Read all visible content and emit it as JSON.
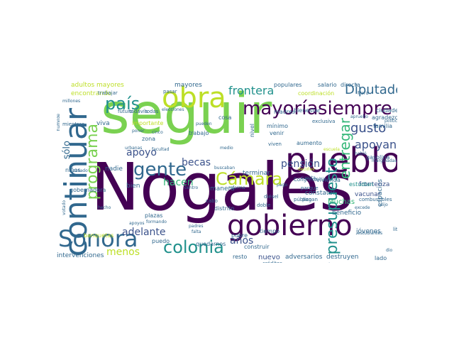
{
  "palette": {
    "dark_purple": "#440154",
    "indigo": "#3b528b",
    "blue": "#31688e",
    "teal": "#21918c",
    "sea_green": "#35b779",
    "green": "#7ad151",
    "yellow_green": "#bddf26",
    "yellow": "#fde725"
  },
  "words": [
    {
      "text": "Nogales",
      "color": "#440154"
    },
    {
      "text": "seguir",
      "color": "#7ad151"
    },
    {
      "text": "pueblo",
      "color": "#440154"
    },
    {
      "text": "continuar",
      "color": "#31688e"
    },
    {
      "text": "obra",
      "color": "#bddf26"
    },
    {
      "text": "mayoría",
      "color": "#440154"
    },
    {
      "text": "siempre",
      "color": "#440154"
    },
    {
      "text": "gobierno",
      "color": "#440154"
    },
    {
      "text": "Sonora",
      "color": "#31688e"
    },
    {
      "text": "colonia",
      "color": "#21918c"
    },
    {
      "text": "gente",
      "color": "#31688e"
    },
    {
      "text": "Cámara",
      "color": "#bddf26"
    },
    {
      "text": "país",
      "color": "#21918c"
    },
    {
      "text": "programa",
      "color": "#7ad151"
    },
    {
      "text": "presupuesto",
      "color": "#21918c"
    },
    {
      "text": "Diputados",
      "color": "#31688e"
    },
    {
      "text": "entregar",
      "color": "#35b779"
    },
    {
      "text": "frontera",
      "color": "#21918c"
    },
    {
      "text": "gusto",
      "color": "#3b528b"
    },
    {
      "text": "apoyando",
      "color": "#3b528b"
    },
    {
      "text": "pensión",
      "color": "#3b528b"
    },
    {
      "text": "apoyo",
      "color": "#3b528b"
    },
    {
      "text": "becas",
      "color": "#3b528b"
    },
    {
      "text": "hacen",
      "color": "#35b779"
    },
    {
      "text": "adelante",
      "color": "#3b528b"
    },
    {
      "text": "años",
      "color": "#3b528b"
    },
    {
      "text": "menos",
      "color": "#bddf26"
    },
    {
      "text": "nuevo",
      "color": "#3b528b"
    },
    {
      "text": "sólo",
      "color": "#31688e"
    },
    {
      "text": "adultos mayores",
      "color": "#bddf26"
    },
    {
      "text": "mayores",
      "color": "#31688e"
    },
    {
      "text": "encontrando",
      "color": "#bddf26"
    },
    {
      "text": "intervenciones",
      "color": "#31688e"
    },
    {
      "text": "Muchas",
      "color": "#35b779"
    },
    {
      "text": "jóvenes",
      "color": "#31688e"
    },
    {
      "text": "destruyen",
      "color": "#31688e"
    },
    {
      "text": "adversarios",
      "color": "#31688e"
    },
    {
      "text": "espacios",
      "color": "#31688e"
    },
    {
      "text": "vacunar",
      "color": "#3b528b"
    },
    {
      "text": "fronteriza",
      "color": "#3b528b"
    },
    {
      "text": "estudian",
      "color": "#21918c"
    },
    {
      "text": "viva",
      "color": "#31688e"
    },
    {
      "text": "bien",
      "color": "#31688e"
    },
    {
      "text": "nadie",
      "color": "#31688e"
    },
    {
      "text": "manera",
      "color": "#31688e"
    },
    {
      "text": "terminar",
      "color": "#31688e"
    },
    {
      "text": "constatar",
      "color": "#31688e"
    },
    {
      "text": "beneficio",
      "color": "#31688e"
    },
    {
      "text": "vivienda",
      "color": "#31688e"
    },
    {
      "text": "tiempo",
      "color": "#31688e"
    },
    {
      "text": "pobre",
      "color": "#31688e"
    },
    {
      "text": "resto",
      "color": "#31688e"
    },
    {
      "text": "lado",
      "color": "#31688e"
    },
    {
      "text": "plazas",
      "color": "#31688e"
    },
    {
      "text": "puedo",
      "color": "#31688e"
    },
    {
      "text": "ciudades",
      "color": "#31688e"
    },
    {
      "text": "agradezco",
      "color": "#31688e"
    },
    {
      "text": "familia",
      "color": "#31688e"
    },
    {
      "text": "gasolina",
      "color": "#31688e"
    },
    {
      "text": "salario",
      "color": "#31688e"
    },
    {
      "text": "directa",
      "color": "#31688e"
    },
    {
      "text": "populares",
      "color": "#31688e"
    },
    {
      "text": "Pura",
      "color": "#31688e"
    },
    {
      "text": "todavía",
      "color": "#31688e"
    },
    {
      "text": "todas",
      "color": "#31688e"
    },
    {
      "text": "futuro",
      "color": "#31688e"
    },
    {
      "text": "trabajo",
      "color": "#31688e"
    },
    {
      "text": "trabajar",
      "color": "#31688e"
    },
    {
      "text": "elecciones",
      "color": "#31688e"
    },
    {
      "text": "madres",
      "color": "#31688e"
    },
    {
      "text": "bienestar",
      "color": "#31688e"
    },
    {
      "text": "mínimo",
      "color": "#31688e"
    },
    {
      "text": "aumento",
      "color": "#31688e"
    },
    {
      "text": "venir",
      "color": "#31688e"
    },
    {
      "text": "viven",
      "color": "#31688e"
    },
    {
      "text": "zona",
      "color": "#31688e"
    },
    {
      "text": "nivel",
      "color": "#31688e"
    },
    {
      "text": "cosa",
      "color": "#31688e"
    },
    {
      "text": "pueden",
      "color": "#31688e"
    },
    {
      "text": "buscaban",
      "color": "#31688e"
    },
    {
      "text": "facultad",
      "color": "#31688e"
    },
    {
      "text": "niños",
      "color": "#31688e"
    },
    {
      "text": "Congreso",
      "color": "#31688e"
    },
    {
      "text": "distrito",
      "color": "#31688e"
    },
    {
      "text": "diésel",
      "color": "#31688e"
    },
    {
      "text": "pagan",
      "color": "#31688e"
    },
    {
      "text": "parque",
      "color": "#31688e"
    },
    {
      "text": "créditos",
      "color": "#31688e"
    },
    {
      "text": "amigos",
      "color": "#31688e"
    },
    {
      "text": "quedarnos",
      "color": "#31688e"
    },
    {
      "text": "banquetas",
      "color": "#bddf26"
    },
    {
      "text": "gobernadora",
      "color": "#31688e"
    },
    {
      "text": "coordinación",
      "color": "#bddf26"
    },
    {
      "text": "construir",
      "color": "#31688e"
    },
    {
      "text": "combustibles",
      "color": "#31688e"
    },
    {
      "text": "exclusiva",
      "color": "#31688e"
    },
    {
      "text": "cuenta",
      "color": "#31688e"
    },
    {
      "text": "falta",
      "color": "#31688e"
    },
    {
      "text": "hecho",
      "color": "#31688e"
    },
    {
      "text": "votado",
      "color": "#31688e"
    },
    {
      "text": "importante",
      "color": "#bddf26"
    },
    {
      "text": "poner",
      "color": "#31688e"
    },
    {
      "text": "cabo",
      "color": "#31688e"
    },
    {
      "text": "doble",
      "color": "#31688e"
    },
    {
      "text": "medio",
      "color": "#31688e"
    },
    {
      "text": "centro",
      "color": "#31688e"
    },
    {
      "text": "padres",
      "color": "#31688e"
    },
    {
      "text": "pasar",
      "color": "#31688e"
    },
    {
      "text": "pago",
      "color": "#31688e"
    },
    {
      "text": "litro",
      "color": "#31688e"
    },
    {
      "text": "dio",
      "color": "#31688e"
    },
    {
      "text": "inicio",
      "color": "#31688e"
    },
    {
      "text": "millones",
      "color": "#31688e"
    },
    {
      "text": "cinco",
      "color": "#31688e"
    },
    {
      "text": "dijo",
      "color": "#31688e"
    },
    {
      "text": "público",
      "color": "#31688e"
    },
    {
      "text": "apruebo",
      "color": "#31688e"
    },
    {
      "text": "política",
      "color": "#31688e"
    },
    {
      "text": "formando",
      "color": "#31688e"
    },
    {
      "text": "decirles",
      "color": "#bddf26"
    },
    {
      "text": "excede",
      "color": "#31688e"
    },
    {
      "text": "urbanas",
      "color": "#31688e"
    },
    {
      "text": "reforma",
      "color": "#31688e"
    },
    {
      "text": "escuela",
      "color": "#bddf26"
    },
    {
      "text": "estudiantes",
      "color": "#31688e"
    },
    {
      "text": "marginadas",
      "color": "#31688e"
    },
    {
      "text": "pasado",
      "color": "#31688e"
    },
    {
      "text": "habló",
      "color": "#31688e"
    },
    {
      "text": "humilde",
      "color": "#31688e"
    },
    {
      "text": "mientras",
      "color": "#31688e"
    },
    {
      "text": "apoyos",
      "color": "#31688e"
    }
  ]
}
